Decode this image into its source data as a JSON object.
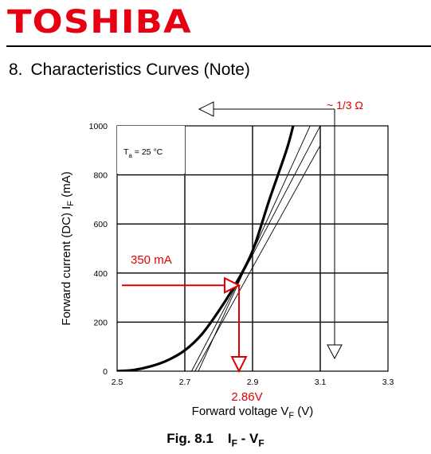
{
  "header": {
    "logo_text": "TOSHIBA",
    "section_number": "8.",
    "section_title": "Characteristics Curves (Note)"
  },
  "colors": {
    "logo": "#e60012",
    "annotation": "#e00000",
    "curve": "#000000"
  },
  "caption": {
    "figure": "Fig. 8.1",
    "title_main": "I",
    "title_sub": "F",
    "title_sep": " - ",
    "title_main2": "V",
    "title_sub2": "F"
  },
  "chart_data": {
    "type": "line",
    "xlabel": {
      "main": "Forward voltage  V",
      "sub": "F",
      "tail": "  (V)"
    },
    "ylabel": {
      "main": "Forward current (DC)  I",
      "sub": "F",
      "tail": "  (mA)"
    },
    "xlim": [
      2.5,
      3.3
    ],
    "ylim": [
      0,
      1000
    ],
    "grid": true,
    "x_ticks": [
      "2.5",
      "2.7",
      "2.9",
      "3.1",
      "3.3"
    ],
    "y_ticks": [
      "0",
      "200",
      "400",
      "600",
      "800",
      "1000"
    ],
    "condition": {
      "prefix": "T",
      "sub": "a",
      "tail": " = 25 °C"
    },
    "series": [
      {
        "x": [
          2.5,
          2.55,
          2.6,
          2.65,
          2.7,
          2.75,
          2.8,
          2.85,
          2.9,
          2.95,
          3.0,
          3.02
        ],
        "y": [
          0,
          5,
          20,
          45,
          85,
          150,
          245,
          355,
          490,
          700,
          900,
          1000
        ]
      }
    ],
    "tangent_lines": [
      {
        "x": [
          2.72,
          3.1
        ],
        "y": [
          0,
          1000
        ]
      },
      {
        "x": [
          2.73,
          3.1
        ],
        "y": [
          0,
          920
        ]
      },
      {
        "x": [
          2.74,
          3.07
        ],
        "y": [
          0,
          1000
        ]
      }
    ],
    "annotations": {
      "resistance_label": "~ 1/3 Ω",
      "current_label": "350 mA",
      "current_value": 350,
      "voltage_label": "2.86V",
      "voltage_value": 2.86
    }
  }
}
